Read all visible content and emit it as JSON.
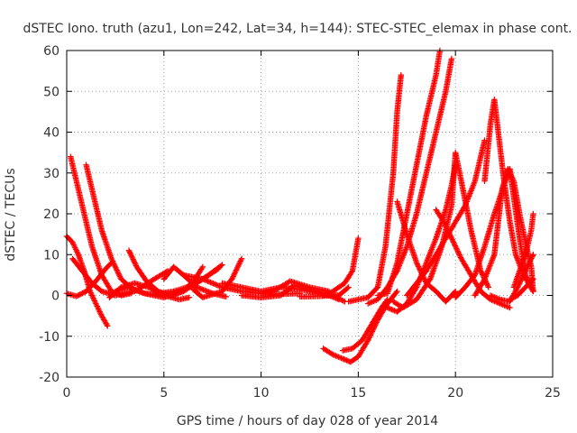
{
  "chart_data": {
    "type": "scatter",
    "title": "dSTEC Iono. truth (azu1, Lon=242, Lat=34, h=144): STEC-STEC_elemax in phase cont.",
    "xlabel": "GPS time / hours of day 028 of year 2014",
    "ylabel": "dSTEC  / TECUs",
    "xlim": [
      0,
      25
    ],
    "ylim": [
      -20,
      60
    ],
    "xticks": [
      0,
      5,
      10,
      15,
      20,
      25
    ],
    "yticks": [
      -20,
      -10,
      0,
      10,
      20,
      30,
      40,
      50,
      60
    ],
    "grid": true,
    "marker": "+",
    "color": "#ff0000",
    "series": [
      {
        "points": [
          [
            0.0,
            14.5
          ],
          [
            0.3,
            13
          ],
          [
            0.6,
            10
          ],
          [
            0.9,
            6
          ],
          [
            1.2,
            1
          ],
          [
            1.5,
            -2
          ],
          [
            1.8,
            -5
          ],
          [
            2.1,
            -7.5
          ]
        ]
      },
      {
        "points": [
          [
            0.0,
            0.5
          ],
          [
            0.5,
            -0.2
          ],
          [
            1.0,
            1
          ],
          [
            1.5,
            3.5
          ],
          [
            2.0,
            6.5
          ],
          [
            2.3,
            8
          ]
        ]
      },
      {
        "points": [
          [
            0.2,
            34
          ],
          [
            0.5,
            28
          ],
          [
            0.9,
            20
          ],
          [
            1.3,
            12
          ],
          [
            1.8,
            5
          ],
          [
            2.3,
            1
          ],
          [
            2.8,
            0
          ],
          [
            3.3,
            0.5
          ]
        ]
      },
      {
        "points": [
          [
            1.0,
            32
          ],
          [
            1.4,
            24
          ],
          [
            1.8,
            16
          ],
          [
            2.3,
            9
          ],
          [
            2.8,
            4
          ],
          [
            3.4,
            1.5
          ],
          [
            4.0,
            0.5
          ],
          [
            4.5,
            0.2
          ]
        ]
      },
      {
        "points": [
          [
            0.3,
            9
          ],
          [
            0.8,
            6
          ],
          [
            1.3,
            3
          ],
          [
            1.8,
            1
          ],
          [
            2.5,
            0
          ],
          [
            3.5,
            1
          ],
          [
            4.5,
            4
          ],
          [
            5.2,
            6
          ]
        ]
      },
      {
        "points": [
          [
            3.2,
            11
          ],
          [
            3.6,
            7
          ],
          [
            4.1,
            3.5
          ],
          [
            4.7,
            1
          ],
          [
            5.3,
            0
          ],
          [
            6.0,
            1
          ],
          [
            6.6,
            4
          ],
          [
            7.0,
            7
          ]
        ]
      },
      {
        "points": [
          [
            2.2,
            -0.5
          ],
          [
            2.8,
            2
          ],
          [
            3.5,
            3
          ],
          [
            4.2,
            2
          ],
          [
            5.0,
            0
          ],
          [
            5.8,
            -1
          ],
          [
            6.3,
            -0.5
          ]
        ]
      },
      {
        "points": [
          [
            2.5,
            1
          ],
          [
            3.2,
            2
          ],
          [
            4.0,
            0.5
          ],
          [
            5.0,
            -0.5
          ],
          [
            6.0,
            1
          ],
          [
            7.0,
            4
          ],
          [
            7.8,
            6.5
          ]
        ]
      },
      {
        "points": [
          [
            5.0,
            4
          ],
          [
            5.5,
            7
          ],
          [
            6.0,
            5
          ],
          [
            6.7,
            2
          ],
          [
            7.5,
            0.5
          ],
          [
            8.2,
            -0.3
          ]
        ]
      },
      {
        "points": [
          [
            4.5,
            0.3
          ],
          [
            5.5,
            1
          ],
          [
            6.5,
            2.5
          ],
          [
            7.3,
            5
          ],
          [
            8.0,
            7.5
          ]
        ]
      },
      {
        "points": [
          [
            6.5,
            1.5
          ],
          [
            7.0,
            -0.5
          ],
          [
            8.0,
            1
          ],
          [
            8.5,
            4
          ],
          [
            9.0,
            9
          ]
        ]
      },
      {
        "points": [
          [
            6.0,
            5
          ],
          [
            7.0,
            4
          ],
          [
            8.0,
            2
          ],
          [
            9.0,
            1
          ],
          [
            10.0,
            0.5
          ],
          [
            11.0,
            0.3
          ],
          [
            12.0,
            0.5
          ]
        ]
      },
      {
        "points": [
          [
            8.0,
            3
          ],
          [
            9.0,
            2
          ],
          [
            10.0,
            1
          ],
          [
            11.0,
            2
          ],
          [
            12.0,
            1.5
          ],
          [
            13.0,
            0.5
          ],
          [
            14.0,
            0
          ],
          [
            14.5,
            2
          ]
        ]
      },
      {
        "points": [
          [
            9.0,
            0
          ],
          [
            10.0,
            -0.5
          ],
          [
            11.0,
            0
          ],
          [
            11.7,
            2.5
          ],
          [
            12.5,
            1.5
          ],
          [
            13.5,
            0
          ],
          [
            14.0,
            -1
          ]
        ]
      },
      {
        "points": [
          [
            10.0,
            0.5
          ],
          [
            10.8,
            1.5
          ],
          [
            11.5,
            3.5
          ],
          [
            12.5,
            2
          ],
          [
            13.5,
            1
          ]
        ]
      },
      {
        "points": [
          [
            12.0,
            -0.3
          ],
          [
            13.0,
            -0.2
          ],
          [
            13.7,
            0
          ],
          [
            14.3,
            -1.5
          ]
        ]
      },
      {
        "points": [
          [
            13.2,
            0
          ],
          [
            13.7,
            1
          ],
          [
            14.3,
            3
          ],
          [
            14.7,
            6
          ],
          [
            15.0,
            14
          ]
        ]
      },
      {
        "points": [
          [
            13.2,
            -13
          ],
          [
            13.7,
            -14.5
          ],
          [
            14.2,
            -15.5
          ],
          [
            14.6,
            -16.3
          ],
          [
            15.0,
            -15
          ],
          [
            15.5,
            -11
          ],
          [
            16.0,
            -6
          ],
          [
            16.5,
            -2
          ],
          [
            17.0,
            1
          ]
        ]
      },
      {
        "points": [
          [
            14.2,
            -13.5
          ],
          [
            14.7,
            -13
          ],
          [
            15.2,
            -11
          ],
          [
            15.7,
            -7
          ],
          [
            16.2,
            -3
          ],
          [
            16.5,
            -1
          ]
        ]
      },
      {
        "points": [
          [
            14.5,
            -1.5
          ],
          [
            15.5,
            -0.5
          ],
          [
            16.0,
            2
          ],
          [
            16.4,
            12
          ],
          [
            16.8,
            30
          ],
          [
            17.0,
            45
          ],
          [
            17.2,
            54
          ]
        ]
      },
      {
        "points": [
          [
            16.0,
            0
          ],
          [
            16.5,
            0.5
          ],
          [
            17.0,
            8
          ],
          [
            17.5,
            20
          ],
          [
            18.0,
            32
          ],
          [
            18.5,
            44
          ],
          [
            19.0,
            54
          ],
          [
            19.2,
            60
          ]
        ]
      },
      {
        "points": [
          [
            15.5,
            -2
          ],
          [
            16.0,
            -1
          ],
          [
            16.5,
            2
          ],
          [
            17.0,
            6
          ],
          [
            17.5,
            12
          ],
          [
            18.0,
            20
          ],
          [
            18.5,
            30
          ],
          [
            19.0,
            40
          ],
          [
            19.5,
            50
          ],
          [
            19.8,
            58
          ]
        ]
      },
      {
        "points": [
          [
            16.5,
            -3
          ],
          [
            17.0,
            -4
          ],
          [
            17.5,
            -2
          ],
          [
            18.0,
            2
          ],
          [
            18.5,
            8
          ],
          [
            19.0,
            14
          ],
          [
            19.5,
            21
          ],
          [
            19.8,
            27
          ],
          [
            20.0,
            32
          ]
        ]
      },
      {
        "points": [
          [
            16.8,
            -1.5
          ],
          [
            17.3,
            -3
          ],
          [
            18.0,
            -1
          ],
          [
            18.7,
            4
          ],
          [
            19.3,
            12
          ],
          [
            19.8,
            22
          ],
          [
            20.0,
            35
          ],
          [
            20.3,
            28
          ],
          [
            20.8,
            16
          ],
          [
            21.3,
            6
          ],
          [
            21.7,
            2
          ]
        ]
      },
      {
        "points": [
          [
            17.0,
            23
          ],
          [
            17.5,
            15
          ],
          [
            18.0,
            8
          ],
          [
            18.5,
            3
          ],
          [
            19.0,
            1
          ],
          [
            19.5,
            -1.5
          ],
          [
            20.0,
            1
          ]
        ]
      },
      {
        "points": [
          [
            17.5,
            0
          ],
          [
            18.0,
            3
          ],
          [
            18.5,
            6
          ],
          [
            19.0,
            10
          ],
          [
            19.5,
            14
          ],
          [
            20.0,
            18
          ],
          [
            20.5,
            22
          ],
          [
            21.0,
            28
          ],
          [
            21.5,
            38
          ]
        ]
      },
      {
        "points": [
          [
            19.0,
            21
          ],
          [
            19.4,
            18
          ],
          [
            19.8,
            14
          ],
          [
            20.3,
            9
          ],
          [
            20.8,
            5
          ],
          [
            21.3,
            1
          ],
          [
            21.8,
            -1
          ],
          [
            22.3,
            -2
          ],
          [
            22.8,
            -3
          ]
        ]
      },
      {
        "points": [
          [
            20.0,
            -0.5
          ],
          [
            20.5,
            2
          ],
          [
            21.0,
            5
          ],
          [
            21.5,
            12
          ],
          [
            22.0,
            20
          ],
          [
            22.5,
            27
          ],
          [
            22.8,
            31
          ],
          [
            23.0,
            24
          ],
          [
            23.3,
            14
          ],
          [
            23.6,
            5
          ],
          [
            24.0,
            1
          ]
        ]
      },
      {
        "points": [
          [
            21.5,
            28
          ],
          [
            21.8,
            42
          ],
          [
            22.0,
            48
          ],
          [
            22.2,
            40
          ],
          [
            22.5,
            28
          ],
          [
            22.8,
            18
          ],
          [
            23.1,
            10
          ],
          [
            23.5,
            5
          ],
          [
            24.0,
            1
          ]
        ]
      },
      {
        "points": [
          [
            21.0,
            0
          ],
          [
            21.5,
            4
          ],
          [
            22.0,
            10
          ],
          [
            22.4,
            26
          ],
          [
            22.7,
            31
          ],
          [
            23.0,
            28
          ],
          [
            23.3,
            20
          ],
          [
            23.6,
            13
          ],
          [
            23.9,
            7
          ],
          [
            24.0,
            1
          ]
        ]
      },
      {
        "points": [
          [
            21.8,
            0
          ],
          [
            22.3,
            -1
          ],
          [
            22.8,
            -1.5
          ],
          [
            23.2,
            2
          ],
          [
            23.6,
            6
          ],
          [
            24.0,
            10
          ]
        ]
      },
      {
        "points": [
          [
            23.0,
            2
          ],
          [
            23.3,
            6
          ],
          [
            23.6,
            10
          ],
          [
            23.9,
            16
          ],
          [
            24.0,
            20
          ]
        ]
      },
      {
        "points": [
          [
            22.8,
            -1
          ],
          [
            23.2,
            0
          ],
          [
            23.6,
            2
          ],
          [
            24.0,
            4
          ]
        ]
      }
    ]
  }
}
